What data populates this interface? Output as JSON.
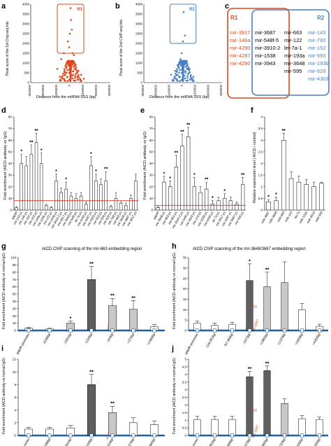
{
  "colors": {
    "red": "#d9481f",
    "blue": "#4a7fc1",
    "dark_bar": "#5f5f5f",
    "light_bar": "#c8c8c8",
    "white_bar": "#ffffff",
    "baseline": "#1f5f9e",
    "threshold": "#e0321f"
  },
  "panels": {
    "a": {
      "letter": "a",
      "region": "R1",
      "ylabel": "Peak score of the 1st Chip-seq hits",
      "xlabel": "Distance from the miRNA SSS (bp)"
    },
    "b": {
      "letter": "b",
      "region": "R2",
      "ylabel": "Peak score of the 2nd ChIP-seq hits",
      "xlabel": "Distance from the miRNA SSS (bp)"
    },
    "c": {
      "letter": "c",
      "r1_label": "R1",
      "r2_label": "R2",
      "r1_only": [
        "mir-3917",
        "mir-146a",
        "mir-4290",
        "mir-4287",
        "mir-4290"
      ],
      "shared_col1": [
        "mir-3687",
        "mir-548f-5",
        "mir-3910-2",
        "mir-1538",
        "mir-3943"
      ],
      "shared_col2": [
        "mir-663",
        "mir-122",
        "let-7a-1",
        "mir-193a",
        "mir-3648",
        "mir-595"
      ],
      "r2_only": [
        "mir-143",
        "mir-760",
        "mir-152",
        "mir-593",
        "mir-193b",
        "mir-629",
        "mir-4303"
      ]
    },
    "d": {
      "letter": "d",
      "ylabel": "Fold enrichment (AICD antibody vs IgG)"
    },
    "e": {
      "letter": "e",
      "ylabel": "Fold enrichment (AICD antibody vs IgG)"
    },
    "f": {
      "letter": "f",
      "ylabel": "Relative expression level ( AICD / control)"
    },
    "g": {
      "letter": "g",
      "title": "AICD ChIP scanning of the mir-663 embedding region",
      "ylabel": "Fold enrichment (AICD antibody vs normal IgG)",
      "mir_label": "mir-663"
    },
    "h": {
      "letter": "h",
      "title": "AICD ChIP scanning of the mir-3648/3687 embedding region",
      "ylabel": "Fold enrichment (AICD antibody vs normal IgG)",
      "mir_label1": "mir-3648",
      "mir_label2": "mir-3687",
      "mir_mark": "-372"
    },
    "i": {
      "letter": "i",
      "ylabel": "Fold enrichment (AICD antibody vs normal IgG)",
      "mir_label": "mir-663"
    },
    "j": {
      "letter": "j",
      "ylabel": "Fold enrichment (AICD antibody vs normal IgG)",
      "mir_label1": "mir-3648",
      "mir_label2": "mir-3687",
      "mir_mark": "-372"
    }
  },
  "chart_data": [
    {
      "id": "a",
      "type": "scatter",
      "xlabel": "Distance from the miRNA SSS (bp)",
      "ylabel": "Peak score of the 1st Chip-seq hits",
      "xlim": [
        -3000000,
        3000000
      ],
      "ylim": [
        0,
        4000
      ],
      "xticks": [
        "-3000000",
        "-2000000",
        "-1000000",
        "0",
        "1000000",
        "2000000",
        "3000000"
      ],
      "yticks": [
        "0",
        "500",
        "1000",
        "1500",
        "2000",
        "2500",
        "3000",
        "3500",
        "4000"
      ],
      "points": [
        [
          -1000000,
          700
        ],
        [
          -700000,
          1200
        ],
        [
          -500000,
          1500
        ],
        [
          -300000,
          800
        ],
        [
          -200000,
          2100
        ],
        [
          -100000,
          1800
        ],
        [
          -50000,
          2500
        ],
        [
          0,
          3800
        ],
        [
          30000,
          3200
        ],
        [
          100000,
          2700
        ],
        [
          150000,
          1500
        ],
        [
          250000,
          1400
        ],
        [
          400000,
          900
        ],
        [
          600000,
          600
        ],
        [
          800000,
          400
        ],
        [
          -800000,
          300
        ],
        [
          -400000,
          500
        ],
        [
          200000,
          400
        ],
        [
          500000,
          300
        ],
        [
          1000000,
          200
        ]
      ],
      "box": {
        "x0": -1000000,
        "x1": 1000000,
        "y0": 1500,
        "y1": 4000
      }
    },
    {
      "id": "b",
      "type": "scatter",
      "xlabel": "Distance from the miRNA SSS (bp)",
      "ylabel": "Peak score of the 2nd ChIP-seq hits",
      "xlim": [
        -3000000,
        3000000
      ],
      "ylim": [
        0,
        4000
      ],
      "xticks": [
        "-3000000",
        "-2000000",
        "-1000000",
        "0",
        "1000000",
        "2000000",
        "3000000"
      ],
      "yticks": [
        "0",
        "500",
        "1000",
        "1500",
        "2000",
        "2500",
        "3000",
        "3500",
        "4000"
      ],
      "points": [
        [
          -900000,
          400
        ],
        [
          -600000,
          600
        ],
        [
          -400000,
          900
        ],
        [
          -200000,
          1200
        ],
        [
          -100000,
          1500
        ],
        [
          0,
          2100
        ],
        [
          50000,
          3600
        ],
        [
          150000,
          2400
        ],
        [
          300000,
          1100
        ],
        [
          500000,
          700
        ],
        [
          800000,
          300
        ],
        [
          -300000,
          300
        ],
        [
          200000,
          500
        ],
        [
          700000,
          200
        ]
      ],
      "box": {
        "x0": -1000000,
        "x1": 1000000,
        "y0": 2000,
        "y1": 4000
      }
    },
    {
      "id": "d",
      "type": "bar",
      "ylim": [
        0,
        80
      ],
      "yticks": [
        "0",
        "10",
        "20",
        "30",
        "40",
        "50",
        "60",
        "70",
        "80"
      ],
      "threshold": 8,
      "categories": [
        "gapdh",
        "mir-143 p1",
        "mir-146 p1",
        "mir-152 p1",
        "mir-152 p2",
        "mir-193a p1",
        "mir-193b p1",
        "mir-122 p1",
        "mir-1538 p1",
        "mir-3910-2 p1",
        "mir-3917 p1",
        "mir-3943 p1",
        "mir-548f p1",
        "let-7a p1",
        "mir-4290 p1",
        "mir-4287 p1",
        "mir-4303 p1",
        "mir-593 p1",
        "mir-595 p1",
        "mir-629 p1",
        "mir-760 p1",
        "mir-663 p1",
        "mir-3648 p1",
        "mir-3687 p1",
        "mir-3917 p2"
      ],
      "values": [
        2,
        40,
        38,
        48,
        58,
        40,
        4,
        2,
        25,
        15,
        18,
        12,
        10,
        12,
        5,
        38,
        25,
        22,
        25,
        3,
        10,
        6,
        4,
        10,
        25
      ],
      "errors": [
        1,
        8,
        8,
        8,
        8,
        9,
        1,
        1,
        6,
        4,
        6,
        3,
        4,
        3,
        2,
        8,
        6,
        5,
        8,
        1,
        5,
        2,
        2,
        3,
        6
      ],
      "stars": [
        "",
        "*",
        "",
        "**",
        "**",
        "*",
        "",
        "",
        "*",
        "",
        "*",
        "",
        "",
        "",
        "",
        "*",
        "*",
        "",
        "**",
        "",
        "",
        "",
        "",
        "",
        ""
      ]
    },
    {
      "id": "e",
      "type": "bar",
      "ylim": [
        0,
        80
      ],
      "yticks": [
        "0",
        "10",
        "20",
        "30",
        "40",
        "50",
        "60",
        "70",
        "80"
      ],
      "threshold": 4,
      "categories": [
        "gapdh",
        "mir-3648 p1",
        "mir-663 p1",
        "mir-652 p1",
        "mir-3910-2 p1",
        "mir-548f p1",
        "mir-3943 p1",
        "mir-122 p1",
        "mir-1538 p1",
        "mir-4290 p1",
        "let-7a p1",
        "mir-3917 p1",
        "mir-4287 p1",
        "mir-3687 p1",
        "mir-595 p1"
      ],
      "values": [
        2,
        24,
        20,
        37,
        55,
        63,
        20,
        15,
        18,
        5,
        8,
        10,
        8,
        5,
        22
      ],
      "errors": [
        1,
        5,
        5,
        10,
        10,
        8,
        8,
        5,
        6,
        3,
        3,
        4,
        3,
        2,
        6
      ],
      "stars": [
        "",
        "*",
        "*",
        "**",
        "**",
        "**",
        "*",
        "",
        "**",
        "*",
        "",
        "*",
        "",
        "",
        "**"
      ]
    },
    {
      "id": "f",
      "type": "bar",
      "ylim": [
        0,
        4
      ],
      "yticks": [
        "0",
        "0.5",
        "1",
        "1.5",
        "2",
        "2.5",
        "3",
        "3.5",
        "4"
      ],
      "categories": [
        "miR-3687",
        "miR-3648",
        "miR-663",
        "miR-122",
        "let-7a",
        "miR-193a",
        "miR-3910",
        "miR-595"
      ],
      "values": [
        0.35,
        0.4,
        3.0,
        1.35,
        1.2,
        1.1,
        1.0,
        1.15
      ],
      "errors": [
        0.1,
        0.15,
        0.3,
        0.3,
        0.25,
        0.2,
        0.2,
        0.05
      ],
      "stars": [
        "*",
        "*",
        "**",
        "",
        "",
        "",
        "",
        ""
      ]
    },
    {
      "id": "g",
      "type": "bar",
      "ylim": [
        0,
        100
      ],
      "yticks": [
        "0",
        "10",
        "20",
        "30",
        "40",
        "50",
        "60",
        "70",
        "80",
        "90",
        "100"
      ],
      "categories": [
        "gapdh promoter",
        "-4296bp",
        "-1931bp",
        "-1150bp",
        "-154bp",
        "+375bp",
        "+2465bp"
      ],
      "values": [
        3,
        2,
        10,
        70,
        34,
        29,
        5
      ],
      "errors": [
        1,
        1,
        3,
        18,
        10,
        12,
        3
      ],
      "shade": [
        "white",
        "white",
        "light",
        "dark",
        "light",
        "light",
        "white"
      ],
      "stars": [
        "",
        "",
        "*",
        "**",
        "**",
        "**",
        ""
      ]
    },
    {
      "id": "h",
      "type": "bar",
      "ylim": [
        0,
        35
      ],
      "yticks": [
        "0",
        "5",
        "10",
        "15",
        "20",
        "25",
        "30",
        "35"
      ],
      "categories": [
        "gapdh promoter",
        "-126,953bp",
        "-97,366bp",
        "-2470bp",
        "+2965bp",
        "+1220bp",
        "+1638bp",
        "+4455bp"
      ],
      "values": [
        3.5,
        2.5,
        3,
        24,
        21,
        23,
        10,
        2
      ],
      "errors": [
        1,
        1,
        1,
        8,
        7,
        10,
        3,
        1
      ],
      "shade": [
        "white",
        "white",
        "white",
        "dark",
        "light",
        "light",
        "white",
        "white"
      ],
      "stars": [
        "",
        "",
        "",
        "*",
        "**",
        "",
        "",
        ""
      ]
    },
    {
      "id": "i",
      "type": "bar",
      "ylim": [
        0,
        12
      ],
      "yticks": [
        "0",
        "2",
        "4",
        "6",
        "8",
        "10",
        "12"
      ],
      "categories": [
        "gapdh promoter",
        "-4296bp",
        "-1931bp",
        "-1150bp",
        "-154bp",
        "+375bp",
        "+2465bp"
      ],
      "values": [
        1.0,
        1.0,
        1.2,
        8.0,
        3.6,
        2.0,
        1.7
      ],
      "errors": [
        0.3,
        0.3,
        0.4,
        1.6,
        1.0,
        0.8,
        0.6
      ],
      "shade": [
        "white",
        "white",
        "white",
        "dark",
        "light",
        "white",
        "white"
      ],
      "stars": [
        "",
        "",
        "",
        "**",
        "**",
        "",
        ""
      ]
    },
    {
      "id": "j",
      "type": "bar",
      "ylim": [
        0,
        5
      ],
      "yticks": [
        "0",
        "0.5",
        "1",
        "1.5",
        "2",
        "2.5",
        "3",
        "3.5",
        "4",
        "4.5",
        "5"
      ],
      "categories": [
        "gapdh promoter",
        "-126,953bp",
        "-97,366bp",
        "-2470bp",
        "+2965bp",
        "+1220bp",
        "+1638bp",
        "+4455bp"
      ],
      "values": [
        1.05,
        1.05,
        1.05,
        3.85,
        4.25,
        2.1,
        1.1,
        1.05
      ],
      "errors": [
        0.2,
        0.2,
        0.2,
        0.35,
        0.3,
        0.3,
        0.2,
        0.15
      ],
      "shade": [
        "white",
        "white",
        "white",
        "dark",
        "dark",
        "light",
        "white",
        "white"
      ],
      "stars": [
        "",
        "",
        "",
        "**",
        "**",
        "",
        "",
        ""
      ]
    }
  ]
}
